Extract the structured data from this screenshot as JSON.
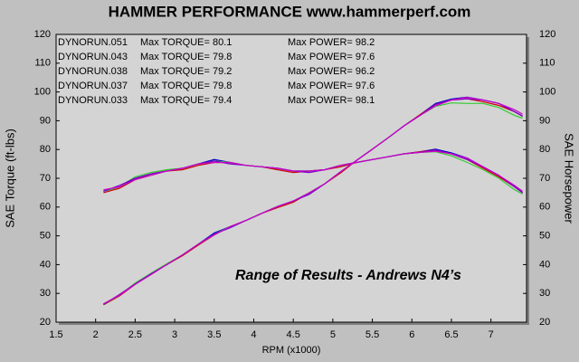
{
  "chart_data": {
    "type": "line",
    "title": "HAMMER PERFORMANCE www.hammerperf.com",
    "xlabel": "RPM (x1000)",
    "ylabel": "SAE Torque (ft-lbs)",
    "y2label": "SAE Horsepower",
    "annotation": "Range of Results - Andrews N4’s",
    "xlim": [
      1.5,
      7.45
    ],
    "xticks": [
      1.5,
      2.0,
      2.5,
      3.0,
      3.5,
      4.0,
      4.5,
      5.0,
      5.5,
      6.0,
      6.5,
      7.0
    ],
    "ylim": [
      20,
      120
    ],
    "yticks": [
      20,
      30,
      40,
      50,
      60,
      70,
      80,
      90,
      100,
      110,
      120
    ],
    "y2lim": [
      20,
      120
    ],
    "y2ticks": [
      20,
      30,
      40,
      50,
      60,
      70,
      80,
      90,
      100,
      110,
      120
    ],
    "x": [
      2.1,
      2.3,
      2.5,
      2.7,
      2.9,
      3.1,
      3.3,
      3.5,
      3.7,
      3.9,
      4.1,
      4.3,
      4.5,
      4.7,
      4.9,
      5.1,
      5.3,
      5.5,
      5.7,
      5.9,
      6.1,
      6.3,
      6.5,
      6.7,
      6.9,
      7.1,
      7.3,
      7.4
    ],
    "series": [
      {
        "name": "DYNORUN.051",
        "color": "#0000cc",
        "max_torque": "Max TORQUE= 80.1",
        "max_power": "Max POWER= 98.2",
        "torque": [
          65.5,
          67,
          70,
          71.5,
          72.5,
          73.5,
          75,
          76.5,
          75.5,
          74.5,
          74,
          73.5,
          72.5,
          72.5,
          73,
          74.5,
          75.5,
          76.5,
          77.5,
          78.5,
          79.2,
          80.1,
          78.8,
          77,
          74,
          71,
          67,
          65
        ],
        "power": [
          26.2,
          29.3,
          33.3,
          36.8,
          40.0,
          43.4,
          47.1,
          51.0,
          53.2,
          55.3,
          57.8,
          60.2,
          62.1,
          64.9,
          68.1,
          72.3,
          76.2,
          80.1,
          84.1,
          88.2,
          92.0,
          96.0,
          97.5,
          98.2,
          97.2,
          96.0,
          93.1,
          91.6
        ]
      },
      {
        "name": "DYNORUN.043",
        "color": "#cc0000",
        "max_torque": "Max TORQUE= 79.8",
        "max_power": "Max POWER= 97.6",
        "torque": [
          65,
          66.5,
          69.5,
          71.5,
          72.5,
          73,
          74.5,
          75.5,
          75.5,
          74.5,
          74,
          73,
          72,
          72.5,
          73,
          74,
          75.5,
          76.5,
          77.5,
          78.5,
          79.2,
          79.8,
          78.5,
          76.5,
          73.5,
          70.5,
          67,
          65
        ],
        "power": [
          26.0,
          29.1,
          33.1,
          36.8,
          40.0,
          43.1,
          46.8,
          50.3,
          53.2,
          55.3,
          57.8,
          59.8,
          61.7,
          64.9,
          68.1,
          71.9,
          76.2,
          80.1,
          84.1,
          88.2,
          92.0,
          95.7,
          97.2,
          97.6,
          96.6,
          95.3,
          93.1,
          91.6
        ]
      },
      {
        "name": "DYNORUN.038",
        "color": "#33cc33",
        "max_torque": "Max TORQUE= 79.2",
        "max_power": "Max POWER= 96.2",
        "torque": [
          65.5,
          67,
          70.5,
          72,
          73,
          73.5,
          75,
          76,
          75.5,
          74.5,
          74,
          73.5,
          72.5,
          72.5,
          73,
          74.5,
          75.5,
          76.5,
          77.5,
          78.5,
          79,
          79.2,
          77.8,
          75.5,
          73,
          70,
          66,
          64.5
        ],
        "power": [
          26.2,
          29.3,
          33.6,
          37.0,
          40.3,
          43.4,
          47.1,
          50.6,
          53.2,
          55.3,
          57.8,
          60.2,
          62.1,
          64.9,
          68.1,
          72.3,
          76.2,
          80.1,
          84.1,
          88.2,
          91.8,
          95.0,
          96.2,
          96.0,
          96.0,
          94.6,
          91.8,
          90.9
        ]
      },
      {
        "name": "DYNORUN.037",
        "color": "#7a00cc",
        "max_torque": "Max TORQUE= 79.8",
        "max_power": "Max POWER= 97.6",
        "torque": [
          65.5,
          67.5,
          70,
          71.5,
          72.5,
          73.5,
          75,
          76,
          75,
          74.5,
          74,
          73.5,
          72.5,
          72,
          73,
          74.5,
          75.5,
          76.5,
          77.5,
          78.5,
          79,
          79.8,
          78.5,
          76.5,
          74,
          71,
          67,
          65
        ],
        "power": [
          26.2,
          29.6,
          33.3,
          36.8,
          40.0,
          43.4,
          47.1,
          50.6,
          52.8,
          55.3,
          57.8,
          60.2,
          62.1,
          64.4,
          68.1,
          72.3,
          76.2,
          80.1,
          84.1,
          88.2,
          91.8,
          95.7,
          97.2,
          97.6,
          97.2,
          96.0,
          93.1,
          91.6
        ]
      },
      {
        "name": "DYNORUN.033",
        "color": "#cc00cc",
        "max_torque": "Max TORQUE= 79.4",
        "max_power": "Max POWER= 98.1",
        "torque": [
          66,
          67,
          69.5,
          71,
          72.5,
          73.5,
          75,
          75.5,
          75.5,
          74.5,
          74,
          73.5,
          72.5,
          72.5,
          73,
          74.5,
          75.5,
          76.5,
          77.5,
          78.5,
          79,
          79.4,
          78.5,
          77,
          74,
          71,
          67.5,
          65.5
        ],
        "power": [
          26.4,
          29.3,
          33.1,
          36.5,
          40.0,
          43.4,
          47.1,
          50.3,
          53.2,
          55.3,
          57.8,
          60.2,
          62.1,
          64.9,
          68.1,
          72.3,
          76.2,
          80.1,
          84.1,
          88.2,
          91.8,
          95.2,
          97.2,
          98.1,
          97.2,
          96.0,
          93.8,
          92.3
        ]
      }
    ]
  }
}
